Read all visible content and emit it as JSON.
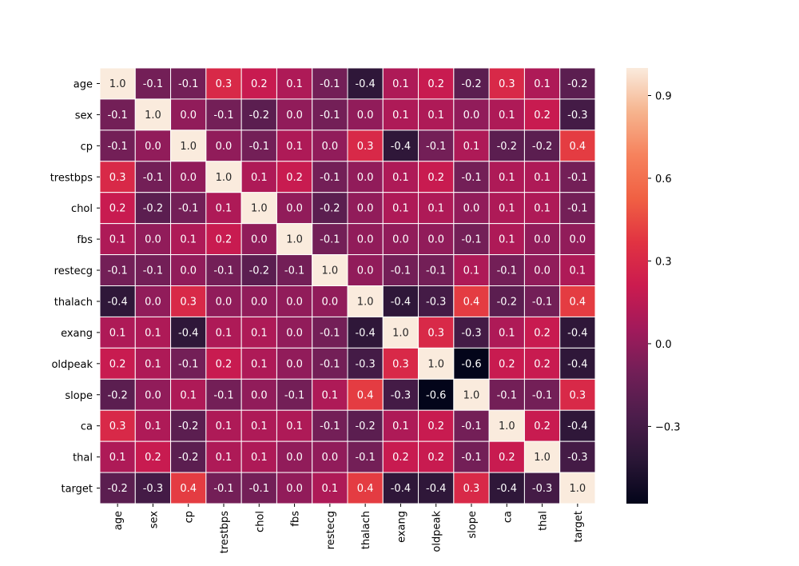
{
  "chart_data": {
    "type": "heatmap",
    "title": "",
    "xlabel": "",
    "ylabel": "",
    "variables": [
      "age",
      "sex",
      "cp",
      "trestbps",
      "chol",
      "fbs",
      "restecg",
      "thalach",
      "exang",
      "oldpeak",
      "slope",
      "ca",
      "thal",
      "target"
    ],
    "values": [
      [
        1.0,
        -0.1,
        -0.1,
        0.3,
        0.2,
        0.1,
        -0.1,
        -0.4,
        0.1,
        0.2,
        -0.2,
        0.3,
        0.1,
        -0.2
      ],
      [
        -0.1,
        1.0,
        -0.0,
        -0.1,
        -0.2,
        0.0,
        -0.1,
        -0.0,
        0.1,
        0.1,
        -0.0,
        0.1,
        0.2,
        -0.3
      ],
      [
        -0.1,
        -0.0,
        1.0,
        0.0,
        -0.1,
        0.1,
        0.0,
        0.3,
        -0.4,
        -0.1,
        0.1,
        -0.2,
        -0.2,
        0.4
      ],
      [
        0.3,
        -0.1,
        0.0,
        1.0,
        0.1,
        0.2,
        -0.1,
        -0.0,
        0.1,
        0.2,
        -0.1,
        0.1,
        0.1,
        -0.1
      ],
      [
        0.2,
        -0.2,
        -0.1,
        0.1,
        1.0,
        0.0,
        -0.2,
        -0.0,
        0.1,
        0.1,
        -0.0,
        0.1,
        0.1,
        -0.1
      ],
      [
        0.1,
        0.0,
        0.1,
        0.2,
        0.0,
        1.0,
        -0.1,
        -0.0,
        0.0,
        0.0,
        -0.1,
        0.1,
        -0.0,
        -0.0
      ],
      [
        -0.1,
        -0.1,
        0.0,
        -0.1,
        -0.2,
        -0.1,
        1.0,
        0.0,
        -0.1,
        -0.1,
        0.1,
        -0.1,
        -0.0,
        0.1
      ],
      [
        -0.4,
        -0.0,
        0.3,
        -0.0,
        -0.0,
        -0.0,
        0.0,
        1.0,
        -0.4,
        -0.3,
        0.4,
        -0.2,
        -0.1,
        0.4
      ],
      [
        0.1,
        0.1,
        -0.4,
        0.1,
        0.1,
        0.0,
        -0.1,
        -0.4,
        1.0,
        0.3,
        -0.3,
        0.1,
        0.2,
        -0.4
      ],
      [
        0.2,
        0.1,
        -0.1,
        0.2,
        0.1,
        0.0,
        -0.1,
        -0.3,
        0.3,
        1.0,
        -0.6,
        0.2,
        0.2,
        -0.4
      ],
      [
        -0.2,
        -0.0,
        0.1,
        -0.1,
        -0.0,
        -0.1,
        0.1,
        0.4,
        -0.3,
        -0.6,
        1.0,
        -0.1,
        -0.1,
        0.3
      ],
      [
        0.3,
        0.1,
        -0.2,
        0.1,
        0.1,
        0.1,
        -0.1,
        -0.2,
        0.1,
        0.2,
        -0.1,
        1.0,
        0.2,
        -0.4
      ],
      [
        0.1,
        0.2,
        -0.2,
        0.1,
        0.1,
        -0.0,
        -0.0,
        -0.1,
        0.2,
        0.2,
        -0.1,
        0.2,
        1.0,
        -0.3
      ],
      [
        -0.2,
        -0.3,
        0.4,
        -0.1,
        -0.1,
        -0.0,
        0.1,
        0.4,
        -0.4,
        -0.4,
        0.3,
        -0.4,
        -0.3,
        1.0
      ]
    ],
    "colorbar": {
      "min": -0.58,
      "max": 1.0,
      "ticks": [
        0.9,
        0.6,
        0.3,
        0.0,
        -0.3
      ],
      "tick_labels": [
        "0.9",
        "0.6",
        "0.3",
        "0.0",
        "−0.3"
      ],
      "colormap": "rocket",
      "colormap_stops": [
        "#03051a",
        "#2a1636",
        "#4c1d4b",
        "#711f57",
        "#a11a5b",
        "#cb1b4f",
        "#e13342",
        "#f06043",
        "#f6825d",
        "#f6b48e",
        "#faebdd"
      ]
    },
    "grid": "white cell borders",
    "legend": "right colorbar"
  }
}
